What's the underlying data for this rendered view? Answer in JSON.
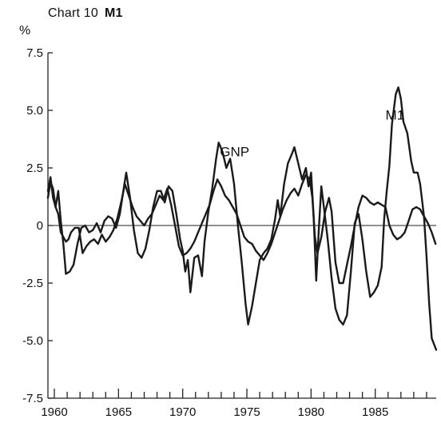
{
  "chart_data": {
    "type": "line",
    "title_prefix": "Chart 10",
    "title_main": "M1",
    "ylabel": "%",
    "ylim": [
      -7.5,
      7.5
    ],
    "y_ticks": [
      "7.5",
      "5.0",
      "2.5",
      "0",
      "-2.5",
      "-5.0",
      "-7.5"
    ],
    "y_tick_values": [
      7.5,
      5.0,
      2.5,
      0,
      -2.5,
      -5.0,
      -7.5
    ],
    "xlim": [
      1959.5,
      1989.75
    ],
    "x_ticks": [
      "1960",
      "1965",
      "1970",
      "1975",
      "1980",
      "1985"
    ],
    "x_tick_values": [
      1960,
      1965,
      1970,
      1975,
      1980,
      1985
    ],
    "zero_line": true,
    "series": [
      {
        "name": "GNP",
        "label_at": [
          1972.9,
          3.0
        ],
        "points": [
          [
            1959.5,
            1.2
          ],
          [
            1959.7,
            1.9
          ],
          [
            1959.9,
            1.6
          ],
          [
            1960.1,
            0.8
          ],
          [
            1960.3,
            0.5
          ],
          [
            1960.5,
            -0.3
          ],
          [
            1960.7,
            -0.5
          ],
          [
            1960.9,
            -0.7
          ],
          [
            1961.1,
            -0.6
          ],
          [
            1961.3,
            -0.3
          ],
          [
            1961.6,
            -0.1
          ],
          [
            1961.9,
            -0.1
          ],
          [
            1962.2,
            -1.2
          ],
          [
            1962.5,
            -0.9
          ],
          [
            1962.8,
            -0.7
          ],
          [
            1963.1,
            -0.6
          ],
          [
            1963.4,
            -0.8
          ],
          [
            1963.7,
            -0.4
          ],
          [
            1964.0,
            -0.7
          ],
          [
            1964.3,
            -0.5
          ],
          [
            1964.6,
            -0.2
          ],
          [
            1964.9,
            0.3
          ],
          [
            1965.2,
            1.0
          ],
          [
            1965.5,
            1.8
          ],
          [
            1965.8,
            1.3
          ],
          [
            1966.1,
            0.8
          ],
          [
            1966.4,
            0.4
          ],
          [
            1966.7,
            0.2
          ],
          [
            1967.0,
            0.0
          ],
          [
            1967.3,
            0.3
          ],
          [
            1967.6,
            0.5
          ],
          [
            1967.9,
            0.9
          ],
          [
            1968.2,
            1.3
          ],
          [
            1968.5,
            1.1
          ],
          [
            1968.8,
            1.6
          ],
          [
            1969.1,
            0.9
          ],
          [
            1969.4,
            0.0
          ],
          [
            1969.7,
            -0.9
          ],
          [
            1970.0,
            -1.3
          ],
          [
            1970.3,
            -1.2
          ],
          [
            1970.6,
            -1.0
          ],
          [
            1970.9,
            -0.7
          ],
          [
            1971.2,
            -0.3
          ],
          [
            1971.5,
            0.1
          ],
          [
            1971.8,
            0.5
          ],
          [
            1972.1,
            0.9
          ],
          [
            1972.4,
            1.5
          ],
          [
            1972.7,
            2.0
          ],
          [
            1973.0,
            1.7
          ],
          [
            1973.3,
            1.3
          ],
          [
            1973.6,
            1.1
          ],
          [
            1973.9,
            0.8
          ],
          [
            1974.2,
            0.5
          ],
          [
            1974.5,
            0.0
          ],
          [
            1974.8,
            -0.5
          ],
          [
            1975.1,
            -0.7
          ],
          [
            1975.4,
            -0.8
          ],
          [
            1975.7,
            -1.1
          ],
          [
            1976.0,
            -1.3
          ],
          [
            1976.3,
            -1.5
          ],
          [
            1976.6,
            -1.2
          ],
          [
            1976.9,
            -0.8
          ],
          [
            1977.2,
            -0.3
          ],
          [
            1977.5,
            0.2
          ],
          [
            1977.8,
            0.7
          ],
          [
            1978.1,
            1.1
          ],
          [
            1978.4,
            1.4
          ],
          [
            1978.7,
            1.6
          ],
          [
            1979.0,
            1.3
          ],
          [
            1979.3,
            1.8
          ],
          [
            1979.6,
            2.2
          ],
          [
            1979.9,
            2.0
          ],
          [
            1980.1,
            1.2
          ],
          [
            1980.3,
            -0.5
          ],
          [
            1980.5,
            -1.2
          ],
          [
            1980.8,
            -0.5
          ],
          [
            1981.1,
            0.6
          ],
          [
            1981.4,
            1.2
          ],
          [
            1981.6,
            0.6
          ],
          [
            1981.9,
            -1.6
          ],
          [
            1982.2,
            -2.5
          ],
          [
            1982.5,
            -2.5
          ],
          [
            1982.8,
            -1.7
          ],
          [
            1983.1,
            -0.9
          ],
          [
            1983.4,
            0.0
          ],
          [
            1983.7,
            0.8
          ],
          [
            1984.0,
            1.3
          ],
          [
            1984.3,
            1.2
          ],
          [
            1984.6,
            1.0
          ],
          [
            1984.9,
            0.9
          ],
          [
            1985.2,
            1.0
          ],
          [
            1985.5,
            0.9
          ],
          [
            1985.8,
            0.8
          ],
          [
            1986.1,
            0.0
          ],
          [
            1986.4,
            -0.4
          ],
          [
            1986.7,
            -0.6
          ],
          [
            1987.0,
            -0.5
          ],
          [
            1987.3,
            -0.3
          ],
          [
            1987.6,
            0.2
          ],
          [
            1987.9,
            0.7
          ],
          [
            1988.2,
            0.8
          ],
          [
            1988.5,
            0.7
          ],
          [
            1988.8,
            0.4
          ],
          [
            1989.1,
            0.1
          ],
          [
            1989.4,
            -0.3
          ],
          [
            1989.7,
            -0.8
          ]
        ]
      },
      {
        "name": "M1",
        "label_at": [
          1985.8,
          4.6
        ],
        "points": [
          [
            1959.5,
            1.5
          ],
          [
            1959.7,
            2.1
          ],
          [
            1959.9,
            1.2
          ],
          [
            1960.1,
            0.8
          ],
          [
            1960.3,
            1.5
          ],
          [
            1960.5,
            0.2
          ],
          [
            1960.7,
            -0.8
          ],
          [
            1960.9,
            -2.1
          ],
          [
            1961.2,
            -2.0
          ],
          [
            1961.5,
            -1.7
          ],
          [
            1961.8,
            -0.8
          ],
          [
            1962.1,
            -0.1
          ],
          [
            1962.4,
            0.0
          ],
          [
            1962.7,
            -0.3
          ],
          [
            1963.0,
            -0.2
          ],
          [
            1963.3,
            0.1
          ],
          [
            1963.6,
            -0.3
          ],
          [
            1963.9,
            0.2
          ],
          [
            1964.2,
            0.4
          ],
          [
            1964.5,
            0.3
          ],
          [
            1964.8,
            -0.1
          ],
          [
            1965.1,
            0.5
          ],
          [
            1965.4,
            1.6
          ],
          [
            1965.6,
            2.3
          ],
          [
            1965.9,
            1.2
          ],
          [
            1966.2,
            -0.2
          ],
          [
            1966.5,
            -1.2
          ],
          [
            1966.8,
            -1.4
          ],
          [
            1967.1,
            -1.0
          ],
          [
            1967.4,
            -0.2
          ],
          [
            1967.7,
            0.8
          ],
          [
            1968.0,
            1.5
          ],
          [
            1968.3,
            1.5
          ],
          [
            1968.6,
            1.0
          ],
          [
            1968.9,
            1.7
          ],
          [
            1969.2,
            1.5
          ],
          [
            1969.5,
            0.5
          ],
          [
            1969.8,
            -0.6
          ],
          [
            1970.0,
            -1.1
          ],
          [
            1970.2,
            -2.0
          ],
          [
            1970.4,
            -1.5
          ],
          [
            1970.6,
            -2.9
          ],
          [
            1970.9,
            -1.4
          ],
          [
            1971.2,
            -1.3
          ],
          [
            1971.5,
            -2.2
          ],
          [
            1971.7,
            -0.7
          ],
          [
            1972.0,
            0.6
          ],
          [
            1972.3,
            1.6
          ],
          [
            1972.6,
            2.9
          ],
          [
            1972.8,
            3.6
          ],
          [
            1973.1,
            3.2
          ],
          [
            1973.4,
            2.5
          ],
          [
            1973.7,
            2.9
          ],
          [
            1974.0,
            1.8
          ],
          [
            1974.3,
            0.0
          ],
          [
            1974.6,
            -1.6
          ],
          [
            1974.9,
            -3.4
          ],
          [
            1975.1,
            -4.3
          ],
          [
            1975.4,
            -3.5
          ],
          [
            1975.7,
            -2.5
          ],
          [
            1976.0,
            -1.5
          ],
          [
            1976.3,
            -1.2
          ],
          [
            1976.6,
            -1.0
          ],
          [
            1976.9,
            -0.6
          ],
          [
            1977.2,
            0.3
          ],
          [
            1977.4,
            1.1
          ],
          [
            1977.6,
            0.4
          ],
          [
            1977.9,
            1.8
          ],
          [
            1978.2,
            2.7
          ],
          [
            1978.5,
            3.1
          ],
          [
            1978.7,
            3.4
          ],
          [
            1979.0,
            2.7
          ],
          [
            1979.3,
            2.0
          ],
          [
            1979.6,
            2.5
          ],
          [
            1979.8,
            1.7
          ],
          [
            1980.0,
            2.3
          ],
          [
            1980.2,
            0.4
          ],
          [
            1980.4,
            -2.4
          ],
          [
            1980.6,
            -0.2
          ],
          [
            1980.8,
            1.7
          ],
          [
            1981.0,
            0.8
          ],
          [
            1981.3,
            -0.6
          ],
          [
            1981.6,
            -2.3
          ],
          [
            1981.9,
            -3.6
          ],
          [
            1982.2,
            -4.1
          ],
          [
            1982.5,
            -4.3
          ],
          [
            1982.8,
            -3.9
          ],
          [
            1983.1,
            -2.0
          ],
          [
            1983.4,
            0.1
          ],
          [
            1983.7,
            0.5
          ],
          [
            1984.0,
            -0.6
          ],
          [
            1984.3,
            -2.0
          ],
          [
            1984.6,
            -3.1
          ],
          [
            1984.9,
            -2.9
          ],
          [
            1985.2,
            -2.6
          ],
          [
            1985.5,
            -1.8
          ],
          [
            1985.7,
            0.3
          ],
          [
            1985.9,
            1.5
          ],
          [
            1986.1,
            2.6
          ],
          [
            1986.3,
            4.4
          ],
          [
            1986.6,
            5.7
          ],
          [
            1986.8,
            6.0
          ],
          [
            1987.0,
            5.5
          ],
          [
            1987.2,
            4.5
          ],
          [
            1987.5,
            4.0
          ],
          [
            1987.8,
            2.8
          ],
          [
            1988.0,
            2.3
          ],
          [
            1988.3,
            2.3
          ],
          [
            1988.5,
            1.8
          ],
          [
            1988.8,
            0.4
          ],
          [
            1989.0,
            -1.4
          ],
          [
            1989.2,
            -3.4
          ],
          [
            1989.4,
            -4.9
          ],
          [
            1989.75,
            -5.4
          ]
        ]
      }
    ]
  }
}
